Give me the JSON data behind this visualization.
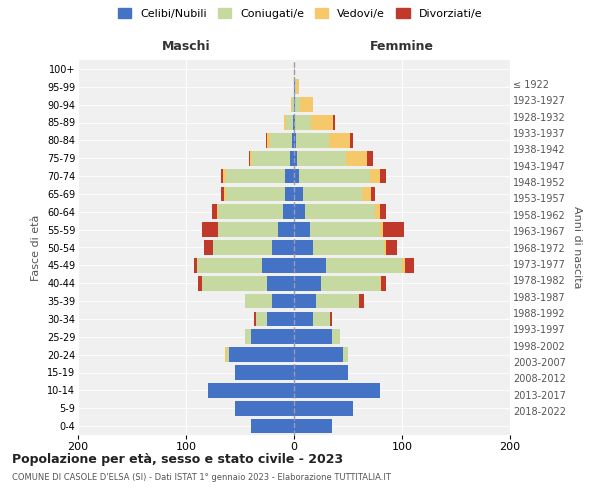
{
  "age_groups": [
    "0-4",
    "5-9",
    "10-14",
    "15-19",
    "20-24",
    "25-29",
    "30-34",
    "35-39",
    "40-44",
    "45-49",
    "50-54",
    "55-59",
    "60-64",
    "65-69",
    "70-74",
    "75-79",
    "80-84",
    "85-89",
    "90-94",
    "95-99",
    "100+"
  ],
  "birth_years": [
    "2018-2022",
    "2013-2017",
    "2008-2012",
    "2003-2007",
    "1998-2002",
    "1993-1997",
    "1988-1992",
    "1983-1987",
    "1978-1982",
    "1973-1977",
    "1968-1972",
    "1963-1967",
    "1958-1962",
    "1953-1957",
    "1948-1952",
    "1943-1947",
    "1938-1942",
    "1933-1937",
    "1928-1932",
    "1923-1927",
    "≤ 1922"
  ],
  "male": {
    "celibi": [
      40,
      55,
      80,
      55,
      60,
      40,
      25,
      20,
      25,
      30,
      20,
      15,
      10,
      8,
      8,
      4,
      2,
      1,
      0,
      0,
      0
    ],
    "coniugati": [
      0,
      0,
      0,
      0,
      2,
      5,
      10,
      25,
      60,
      60,
      55,
      55,
      60,
      55,
      55,
      35,
      20,
      6,
      2,
      0,
      0
    ],
    "vedovi": [
      0,
      0,
      0,
      0,
      2,
      0,
      0,
      0,
      0,
      0,
      0,
      0,
      1,
      2,
      3,
      2,
      3,
      2,
      1,
      0,
      0
    ],
    "divorziati": [
      0,
      0,
      0,
      0,
      0,
      0,
      2,
      0,
      4,
      3,
      8,
      15,
      5,
      3,
      2,
      1,
      1,
      0,
      0,
      0,
      0
    ]
  },
  "female": {
    "celibi": [
      35,
      55,
      80,
      50,
      45,
      35,
      18,
      20,
      25,
      30,
      18,
      15,
      10,
      8,
      5,
      3,
      2,
      1,
      1,
      1,
      0
    ],
    "coniugati": [
      0,
      0,
      0,
      0,
      5,
      8,
      15,
      40,
      55,
      70,
      65,
      65,
      65,
      55,
      65,
      45,
      30,
      15,
      5,
      1,
      0
    ],
    "vedovi": [
      0,
      0,
      0,
      0,
      0,
      0,
      0,
      0,
      1,
      3,
      2,
      2,
      5,
      8,
      10,
      20,
      20,
      20,
      12,
      3,
      1
    ],
    "divorziati": [
      0,
      0,
      0,
      0,
      0,
      0,
      2,
      5,
      4,
      8,
      10,
      20,
      5,
      4,
      5,
      5,
      3,
      2,
      0,
      0,
      0
    ]
  },
  "colors": {
    "celibi": "#4472C4",
    "coniugati": "#c5d9a0",
    "vedovi": "#f5c96a",
    "divorziati": "#c0392b"
  },
  "xlim": 200,
  "title": "Popolazione per età, sesso e stato civile - 2023",
  "subtitle": "COMUNE DI CASOLE D'ELSA (SI) - Dati ISTAT 1° gennaio 2023 - Elaborazione TUTTITALIA.IT",
  "ylabel_left": "Fasce di età",
  "ylabel_right": "Anni di nascita",
  "xlabel_male": "Maschi",
  "xlabel_female": "Femmine",
  "legend_labels": [
    "Celibi/Nubili",
    "Coniugati/e",
    "Vedovi/e",
    "Divorziati/e"
  ],
  "bg_color": "#f0f0f0"
}
